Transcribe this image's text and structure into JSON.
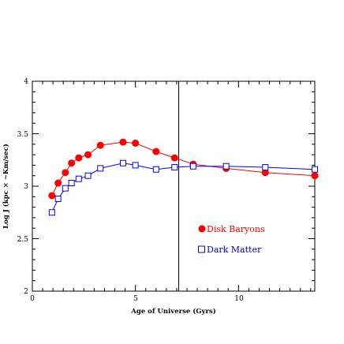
{
  "chart_data": {
    "type": "line",
    "xlabel": "Age of Universe  (Gyrs)",
    "ylabel": "Log J (kpc × ~Km/sec)",
    "xlim": [
      0,
      13.7
    ],
    "ylim": [
      2,
      4
    ],
    "x_ticks": [
      "0",
      "5",
      "10"
    ],
    "y_ticks": [
      "2",
      "2.5",
      "3",
      "3.5",
      "4"
    ],
    "vline_x": 7.1,
    "grid": false,
    "legend_position": "lower-right",
    "series": [
      {
        "name": "Disk Baryons",
        "marker": "filled-circle",
        "color": "#ff0000",
        "x": [
          0.95,
          1.25,
          1.6,
          1.9,
          2.25,
          2.7,
          3.3,
          4.4,
          5.0,
          6.0,
          6.9,
          7.8,
          9.4,
          11.3,
          13.7
        ],
        "y": [
          2.91,
          3.03,
          3.13,
          3.22,
          3.27,
          3.3,
          3.39,
          3.42,
          3.41,
          3.33,
          3.27,
          3.21,
          3.17,
          3.13,
          3.1
        ]
      },
      {
        "name": "Dark Matter",
        "marker": "open-square",
        "color": "#0000ff",
        "x": [
          0.95,
          1.25,
          1.6,
          1.9,
          2.25,
          2.7,
          3.3,
          4.4,
          5.0,
          6.0,
          6.9,
          7.8,
          9.4,
          11.3,
          13.7
        ],
        "y": [
          2.75,
          2.88,
          2.98,
          3.03,
          3.07,
          3.1,
          3.17,
          3.22,
          3.2,
          3.16,
          3.18,
          3.19,
          3.19,
          3.18,
          3.16
        ]
      }
    ]
  }
}
